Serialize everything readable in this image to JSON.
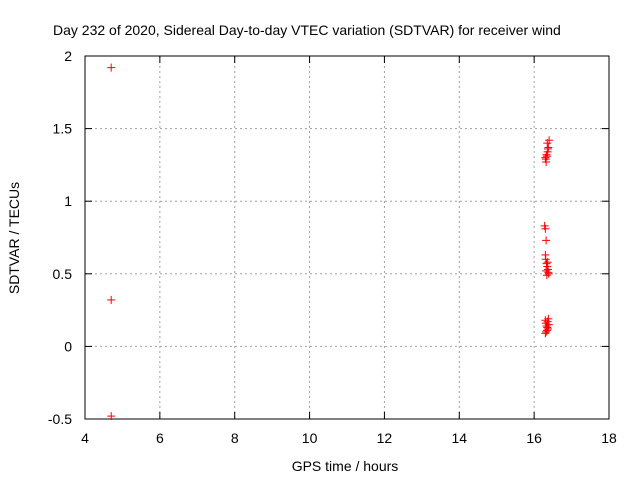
{
  "chart_data": {
    "type": "scatter",
    "title": "Day 232 of 2020, Sidereal Day-to-day VTEC variation (SDTVAR) for receiver wind",
    "xlabel": "GPS time / hours",
    "ylabel": "SDTVAR / TECUs",
    "xlim": [
      4,
      18
    ],
    "ylim": [
      -0.5,
      2
    ],
    "xticks": [
      4,
      6,
      8,
      10,
      12,
      14,
      16,
      18
    ],
    "xtick_labels": [
      "4",
      "6",
      "8",
      "10",
      "12",
      "14",
      "16",
      "18"
    ],
    "yticks": [
      -0.5,
      0,
      0.5,
      1,
      1.5,
      2
    ],
    "ytick_labels": [
      "-0.5",
      "0",
      "0.5",
      "1",
      "1.5",
      "2"
    ],
    "grid": true,
    "marker": "+",
    "color": "#ff0000",
    "series": [
      {
        "name": "SDTVAR",
        "x": [
          4.7,
          4.7,
          4.7,
          16.3,
          16.32,
          16.34,
          16.36,
          16.38,
          16.4,
          16.35,
          16.33,
          16.31,
          16.37,
          16.28,
          16.3,
          16.32,
          16.3,
          16.31,
          16.33,
          16.35,
          16.37,
          16.38,
          16.39,
          16.34,
          16.32,
          16.36,
          16.3,
          16.31,
          16.33,
          16.35,
          16.37,
          16.38,
          16.39,
          16.34,
          16.32,
          16.36,
          16.3
        ],
        "y": [
          1.92,
          0.32,
          -0.48,
          1.3,
          1.27,
          1.31,
          1.34,
          1.37,
          1.42,
          1.4,
          1.32,
          1.29,
          1.36,
          0.83,
          0.81,
          0.73,
          0.63,
          0.6,
          0.57,
          0.55,
          0.53,
          0.51,
          0.5,
          0.49,
          0.52,
          0.58,
          0.18,
          0.16,
          0.14,
          0.13,
          0.12,
          0.19,
          0.15,
          0.11,
          0.1,
          0.17,
          0.09
        ]
      }
    ]
  }
}
